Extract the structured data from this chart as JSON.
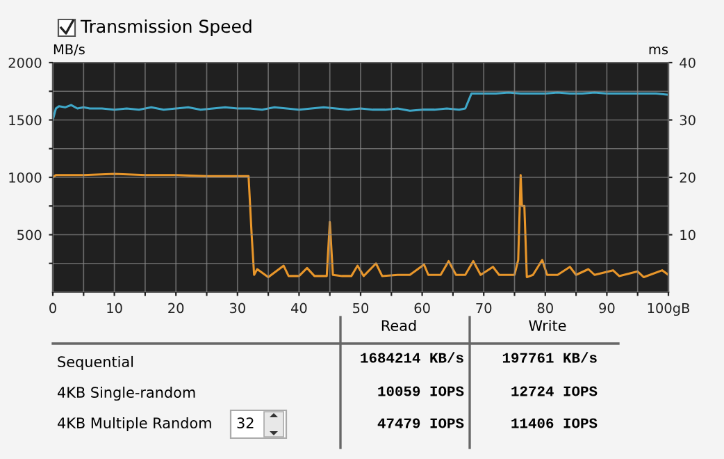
{
  "chart_data": {
    "type": "line",
    "title": "Transmission Speed",
    "ylabel": "MB/s",
    "y2label": "ms",
    "xlim": [
      0,
      100
    ],
    "xticks": [
      0,
      {
        "value": 5,
        "label": null
      },
      10,
      {
        "value": 15,
        "label": null
      },
      20,
      {
        "value": 25,
        "label": null
      },
      30,
      {
        "value": 35,
        "label": null
      },
      40,
      {
        "value": 45,
        "label": null
      },
      50,
      {
        "value": 55,
        "label": null
      },
      60,
      {
        "value": 65,
        "label": null
      },
      70,
      {
        "value": 75,
        "label": null
      },
      80,
      {
        "value": 85,
        "label": null
      },
      90,
      {
        "value": 95,
        "label": null
      },
      {
        "value": 100,
        "label": "100gB"
      }
    ],
    "ylim": [
      0,
      2000
    ],
    "yticks": [
      {
        "value": 250,
        "label": null
      },
      500,
      {
        "value": 750,
        "label": null
      },
      1000,
      {
        "value": 1250,
        "label": null
      },
      1500,
      {
        "value": 1750,
        "label": null
      },
      2000
    ],
    "y2lim": [
      0,
      40
    ],
    "y2ticks": [
      10,
      20,
      30,
      40
    ],
    "grid": true,
    "marker": "none",
    "line_style": "solid",
    "series": [
      {
        "color": "#3fa7c8",
        "x": [
          0,
          0.5,
          1,
          2,
          3,
          4,
          5,
          6,
          8,
          10,
          12,
          14,
          16,
          18,
          20,
          22,
          24,
          26,
          28,
          30,
          32,
          34,
          36,
          38,
          40,
          42,
          44,
          46,
          48,
          50,
          52,
          54,
          56,
          58,
          60,
          62,
          64,
          66,
          67,
          68,
          70,
          72,
          74,
          76,
          78,
          80,
          82,
          84,
          86,
          88,
          90,
          92,
          94,
          96,
          98,
          100
        ],
        "values": [
          1500,
          1600,
          1620,
          1610,
          1630,
          1600,
          1610,
          1600,
          1600,
          1590,
          1600,
          1590,
          1610,
          1590,
          1600,
          1610,
          1590,
          1600,
          1610,
          1600,
          1600,
          1590,
          1610,
          1600,
          1590,
          1600,
          1610,
          1600,
          1590,
          1600,
          1590,
          1590,
          1600,
          1580,
          1590,
          1590,
          1600,
          1590,
          1600,
          1730,
          1730,
          1730,
          1740,
          1730,
          1730,
          1730,
          1740,
          1730,
          1730,
          1740,
          1730,
          1730,
          1730,
          1730,
          1730,
          1720
        ]
      },
      {
        "color": "#e8962a",
        "x": [
          0,
          0.5,
          5,
          10,
          15,
          20,
          25,
          31.8,
          32.3,
          32.7,
          33.2,
          35,
          37.5,
          38.3,
          40,
          41.3,
          42.5,
          44.5,
          45,
          45.5,
          47,
          48.5,
          49.5,
          50.5,
          52.5,
          53.5,
          56,
          58,
          60.3,
          61,
          63,
          64.3,
          65.5,
          67,
          68.3,
          69.5,
          71.5,
          72.5,
          75,
          75.6,
          76,
          76.2,
          76.6,
          77,
          78,
          79.5,
          80.3,
          82,
          84,
          85,
          87,
          88,
          91,
          92,
          95,
          96,
          99,
          100
        ],
        "values": [
          1000,
          1020,
          1020,
          1030,
          1020,
          1020,
          1010,
          1010,
          500,
          150,
          200,
          130,
          230,
          140,
          140,
          210,
          140,
          140,
          610,
          150,
          140,
          140,
          230,
          140,
          250,
          140,
          150,
          150,
          240,
          150,
          150,
          270,
          150,
          150,
          270,
          150,
          220,
          150,
          150,
          280,
          1020,
          750,
          750,
          130,
          150,
          280,
          150,
          150,
          220,
          150,
          200,
          150,
          190,
          140,
          180,
          130,
          190,
          150
        ]
      }
    ],
    "annotations": [
      "Read",
      "Write",
      "Sequential",
      "1684214 KB/s",
      "197761 KB/s",
      "4KB Single-random",
      "10059 IOPS",
      "12724 IOPS",
      "4KB Multiple Random",
      "32",
      "47479 IOPS",
      "11406 IOPS"
    ]
  }
}
